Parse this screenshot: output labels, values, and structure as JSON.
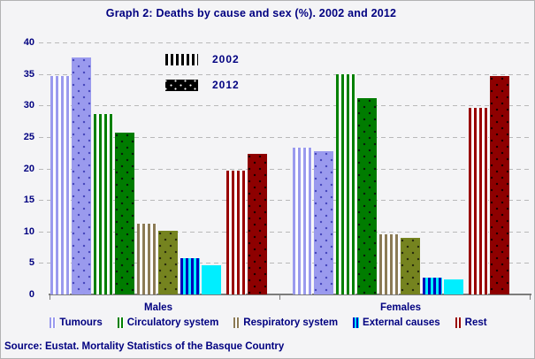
{
  "title": "Graph 2: Deaths by cause and sex (%). 2002 and 2012",
  "source": "Source: Eustat. Mortality Statistics of the Basque Country",
  "text_color": "#000080",
  "year_legend": [
    {
      "label": "2002",
      "pattern": "striped",
      "swatch_color": "#000000"
    },
    {
      "label": "2012",
      "pattern": "speckled",
      "swatch_color": "#000000"
    }
  ],
  "chart_data": {
    "type": "bar",
    "title": "Graph 2: Deaths by cause and sex (%). 2002 and 2012",
    "groups": [
      "Males",
      "Females"
    ],
    "categories": [
      {
        "label": "Tumours",
        "stripe_color": "#9a9aee",
        "stripe_bg": "#ffffff",
        "solid_color": "#9a9aee",
        "dot_color": "#4545bb"
      },
      {
        "label": "Circulatory system",
        "stripe_color": "#008000",
        "stripe_bg": "#ffffff",
        "solid_color": "#007c00",
        "dot_color": "#08180a"
      },
      {
        "label": "Respiratory system",
        "stripe_color": "#8b7a55",
        "stripe_bg": "#ffffff",
        "solid_color": "#75831f",
        "dot_color": "#26290c"
      },
      {
        "label": "External causes",
        "stripe_color": "#0000bb",
        "stripe_bg": "#00eeff",
        "solid_color": "#00eeff",
        "dot_color": "transparent"
      },
      {
        "label": "Rest",
        "stripe_color": "#990000",
        "stripe_bg": "#ffffff",
        "solid_color": "#8e0000",
        "dot_color": "#170000"
      }
    ],
    "series": [
      {
        "name": "2002",
        "pattern": "striped",
        "values": [
          [
            34.7,
            28.7,
            11.2,
            5.7,
            19.7
          ],
          [
            23.3,
            35.0,
            9.6,
            2.7,
            29.6
          ]
        ]
      },
      {
        "name": "2012",
        "pattern": "speckled",
        "values": [
          [
            37.6,
            25.7,
            10.1,
            4.6,
            22.3
          ],
          [
            22.8,
            31.1,
            9.0,
            2.4,
            34.7
          ]
        ]
      }
    ],
    "xlabel": "",
    "ylabel": "",
    "ylim": [
      0,
      40
    ],
    "yticks": [
      0,
      5,
      10,
      15,
      20,
      25,
      30,
      35,
      40
    ],
    "grid": "dashed horizontal",
    "legend_position": "top-inner years, bottom categories"
  }
}
